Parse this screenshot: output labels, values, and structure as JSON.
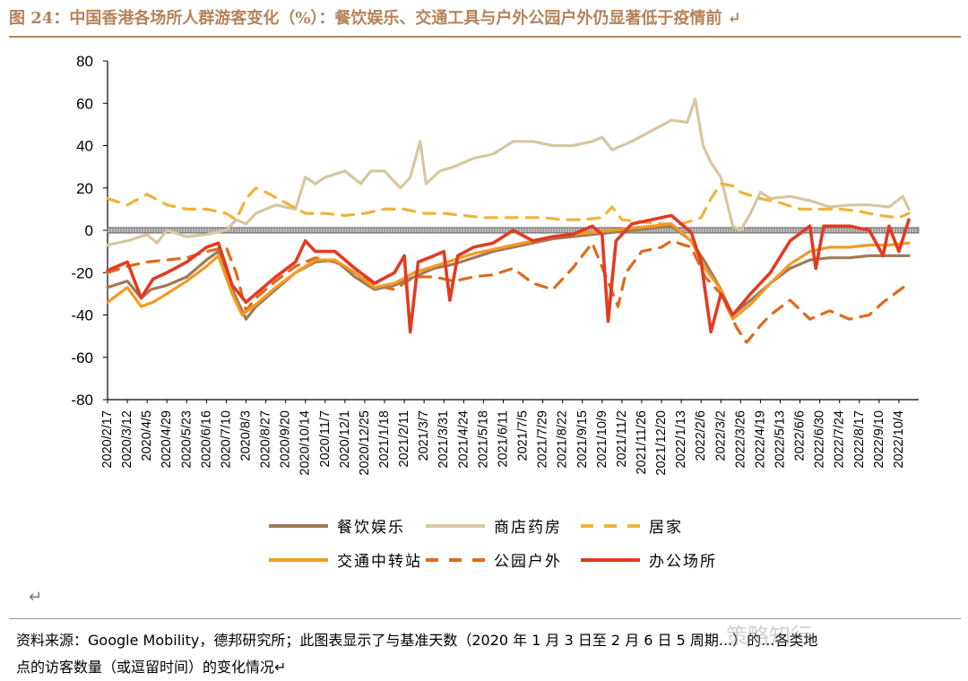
{
  "figure": {
    "title": "图 24：中国香港各场所人群游客变化（%）：餐饮娱乐、交通工具与户外公园户外仍显著低于疫情前 ↵",
    "return_mark": "↵",
    "source_line1": "资料来源：Google Mobility，德邦研究所；此图表显示了与基准天数（2020 年 1 月 3 日至 2 月 6 日 5 周期...）的...各类地",
    "source_line2": "点的访客数量（或逗留时间）的变化情况↵",
    "watermark": "策略知行"
  },
  "chart_data": {
    "type": "line",
    "title": "",
    "xlabel": "",
    "ylabel": "",
    "ylim": [
      -80,
      80
    ],
    "yticks": [
      80,
      60,
      40,
      20,
      0,
      -20,
      -40,
      -60,
      -80
    ],
    "x_tick_labels": [
      "2020/2/17",
      "2020/3/12",
      "2020/4/5",
      "2020/4/29",
      "2020/5/23",
      "2020/6/16",
      "2020/7/10",
      "2020/8/3",
      "2020/8/27",
      "2020/9/20",
      "2020/10/14",
      "2020/11/7",
      "2020/12/1",
      "2020/12/25",
      "2021/1/18",
      "2021/2/11",
      "2021/3/7",
      "2021/3/31",
      "2021/4/24",
      "2021/5/18",
      "2021/6/11",
      "2021/7/5",
      "2021/7/29",
      "2021/8/22",
      "2021/9/15",
      "2021/10/9",
      "2021/11/2",
      "2021/11/26",
      "2021/12/20",
      "2022/1/13",
      "2022/2/6",
      "2022/3/2",
      "2022/3/26",
      "2022/4/19",
      "2022/5/13",
      "2022/6/6",
      "2022/6/30",
      "2022/7/24",
      "2022/8/17",
      "2022/9/10",
      "2022/10/4"
    ],
    "x_index_max": 41,
    "legend_position": "bottom",
    "grid": false,
    "series": [
      {
        "name": "餐饮娱乐",
        "color": "#a07a58",
        "dash": "solid",
        "points": [
          [
            0,
            -27
          ],
          [
            1,
            -24
          ],
          [
            1.7,
            -32
          ],
          [
            2.2,
            -28
          ],
          [
            3,
            -26
          ],
          [
            4,
            -22
          ],
          [
            5,
            -14
          ],
          [
            5.6,
            -10
          ],
          [
            6.3,
            -28
          ],
          [
            7,
            -42
          ],
          [
            7.5,
            -36
          ],
          [
            8.5,
            -28
          ],
          [
            9.5,
            -20
          ],
          [
            10.5,
            -15
          ],
          [
            11.5,
            -14
          ],
          [
            12.5,
            -22
          ],
          [
            13.5,
            -28
          ],
          [
            14.5,
            -26
          ],
          [
            15.5,
            -22
          ],
          [
            16.5,
            -18
          ],
          [
            17.5,
            -16
          ],
          [
            18.5,
            -13
          ],
          [
            19.5,
            -10
          ],
          [
            20.5,
            -8
          ],
          [
            21.5,
            -6
          ],
          [
            22.5,
            -4
          ],
          [
            23.5,
            -3
          ],
          [
            24.5,
            -2
          ],
          [
            25.5,
            -1
          ],
          [
            26.5,
            0
          ],
          [
            27.5,
            1
          ],
          [
            28.5,
            2
          ],
          [
            29.5,
            -5
          ],
          [
            30.2,
            -15
          ],
          [
            31,
            -28
          ],
          [
            31.6,
            -40
          ],
          [
            32.5,
            -33
          ],
          [
            33.5,
            -25
          ],
          [
            34.5,
            -18
          ],
          [
            35.5,
            -14
          ],
          [
            36.5,
            -13
          ],
          [
            37.5,
            -13
          ],
          [
            38.5,
            -12
          ],
          [
            39.5,
            -12
          ],
          [
            40.5,
            -12
          ]
        ]
      },
      {
        "name": "商店药房",
        "color": "#d7c6a0",
        "dash": "solid",
        "points": [
          [
            0,
            -7
          ],
          [
            1,
            -5
          ],
          [
            2,
            -2
          ],
          [
            2.5,
            -6
          ],
          [
            3,
            0
          ],
          [
            4,
            -3
          ],
          [
            5,
            -2
          ],
          [
            6,
            0
          ],
          [
            6.5,
            5
          ],
          [
            7,
            3
          ],
          [
            7.5,
            8
          ],
          [
            8.5,
            12
          ],
          [
            9.5,
            10
          ],
          [
            10,
            25
          ],
          [
            10.5,
            22
          ],
          [
            11,
            25
          ],
          [
            12,
            28
          ],
          [
            12.8,
            22
          ],
          [
            13.3,
            28
          ],
          [
            14,
            28
          ],
          [
            14.8,
            20
          ],
          [
            15.3,
            25
          ],
          [
            15.8,
            42
          ],
          [
            16.1,
            22
          ],
          [
            16.8,
            28
          ],
          [
            17.5,
            30
          ],
          [
            18.5,
            34
          ],
          [
            19.5,
            36
          ],
          [
            20.5,
            42
          ],
          [
            21.5,
            42
          ],
          [
            22.5,
            40
          ],
          [
            23.5,
            40
          ],
          [
            24.5,
            42
          ],
          [
            25,
            44
          ],
          [
            25.5,
            38
          ],
          [
            26.5,
            42
          ],
          [
            27.5,
            47
          ],
          [
            28.5,
            52
          ],
          [
            29.3,
            51
          ],
          [
            29.7,
            62
          ],
          [
            30.1,
            40
          ],
          [
            30.5,
            32
          ],
          [
            31,
            25
          ],
          [
            31.6,
            2
          ],
          [
            32,
            0
          ],
          [
            32.5,
            8
          ],
          [
            33,
            18
          ],
          [
            33.5,
            15
          ],
          [
            34.5,
            16
          ],
          [
            35.5,
            14
          ],
          [
            36.5,
            11
          ],
          [
            37.5,
            12
          ],
          [
            38.5,
            12
          ],
          [
            39.5,
            11
          ],
          [
            40.2,
            16
          ],
          [
            40.5,
            10
          ]
        ]
      },
      {
        "name": "居家",
        "color": "#eeb43a",
        "dash": "dashed",
        "points": [
          [
            0,
            15
          ],
          [
            1,
            12
          ],
          [
            2,
            17
          ],
          [
            3,
            12
          ],
          [
            4,
            10
          ],
          [
            5,
            10
          ],
          [
            6,
            8
          ],
          [
            6.5,
            5
          ],
          [
            7,
            15
          ],
          [
            7.5,
            20
          ],
          [
            8,
            18
          ],
          [
            9,
            13
          ],
          [
            10,
            8
          ],
          [
            11,
            8
          ],
          [
            12,
            7
          ],
          [
            13,
            8
          ],
          [
            14,
            10
          ],
          [
            15,
            10
          ],
          [
            16,
            8
          ],
          [
            17,
            8
          ],
          [
            18,
            7
          ],
          [
            19,
            6
          ],
          [
            20,
            6
          ],
          [
            21,
            6
          ],
          [
            22,
            6
          ],
          [
            23,
            5
          ],
          [
            24,
            5
          ],
          [
            25,
            6
          ],
          [
            25.5,
            11
          ],
          [
            26,
            5
          ],
          [
            27,
            4
          ],
          [
            28,
            3
          ],
          [
            29,
            3
          ],
          [
            30,
            6
          ],
          [
            30.5,
            15
          ],
          [
            31,
            22
          ],
          [
            31.6,
            21
          ],
          [
            32,
            18
          ],
          [
            33,
            15
          ],
          [
            34,
            13
          ],
          [
            35,
            10
          ],
          [
            36,
            10
          ],
          [
            37,
            10
          ],
          [
            38,
            9
          ],
          [
            39,
            7
          ],
          [
            40,
            6
          ],
          [
            40.5,
            8
          ]
        ]
      },
      {
        "name": "交通中转站",
        "color": "#f39a24",
        "dash": "solid",
        "points": [
          [
            0,
            -34
          ],
          [
            1,
            -27
          ],
          [
            1.7,
            -36
          ],
          [
            2.3,
            -34
          ],
          [
            3,
            -30
          ],
          [
            4,
            -24
          ],
          [
            5,
            -17
          ],
          [
            5.6,
            -12
          ],
          [
            6.3,
            -30
          ],
          [
            6.8,
            -40
          ],
          [
            7.5,
            -35
          ],
          [
            8.5,
            -27
          ],
          [
            9.5,
            -20
          ],
          [
            10.5,
            -14
          ],
          [
            11.5,
            -14
          ],
          [
            12.5,
            -20
          ],
          [
            13.5,
            -27
          ],
          [
            14.5,
            -25
          ],
          [
            15.5,
            -20
          ],
          [
            16.5,
            -17
          ],
          [
            17.5,
            -14
          ],
          [
            18.5,
            -11
          ],
          [
            19.5,
            -9
          ],
          [
            20.5,
            -7
          ],
          [
            21.5,
            -5
          ],
          [
            22.5,
            -3
          ],
          [
            23.5,
            -2
          ],
          [
            24.5,
            -1
          ],
          [
            25.5,
            0
          ],
          [
            26.5,
            1
          ],
          [
            27.5,
            2
          ],
          [
            28.5,
            3
          ],
          [
            29.5,
            -5
          ],
          [
            30.2,
            -18
          ],
          [
            31,
            -28
          ],
          [
            31.6,
            -42
          ],
          [
            32.5,
            -35
          ],
          [
            33.5,
            -25
          ],
          [
            34.5,
            -16
          ],
          [
            35.5,
            -10
          ],
          [
            36.5,
            -8
          ],
          [
            37.5,
            -8
          ],
          [
            38.5,
            -7
          ],
          [
            39.5,
            -7
          ],
          [
            40.5,
            -6
          ]
        ]
      },
      {
        "name": "公园户外",
        "color": "#e06a1a",
        "dash": "dashed",
        "points": [
          [
            0,
            -20
          ],
          [
            1,
            -17
          ],
          [
            2,
            -15
          ],
          [
            3,
            -14
          ],
          [
            4,
            -13
          ],
          [
            5,
            -10
          ],
          [
            6,
            -8
          ],
          [
            6.5,
            -20
          ],
          [
            7,
            -38
          ],
          [
            7.5,
            -32
          ],
          [
            8.5,
            -24
          ],
          [
            9.5,
            -17
          ],
          [
            10.5,
            -13
          ],
          [
            11.5,
            -15
          ],
          [
            12.5,
            -20
          ],
          [
            13.5,
            -26
          ],
          [
            14.5,
            -28
          ],
          [
            15.5,
            -22
          ],
          [
            16.5,
            -22
          ],
          [
            17.5,
            -24
          ],
          [
            18.5,
            -22
          ],
          [
            19.5,
            -21
          ],
          [
            20.5,
            -18
          ],
          [
            21.5,
            -25
          ],
          [
            22.5,
            -28
          ],
          [
            23.5,
            -18
          ],
          [
            24.5,
            -6
          ],
          [
            25.2,
            -22
          ],
          [
            25.8,
            -36
          ],
          [
            26.2,
            -20
          ],
          [
            27,
            -10
          ],
          [
            28,
            -8
          ],
          [
            28.5,
            -5
          ],
          [
            29.5,
            -8
          ],
          [
            30.2,
            -22
          ],
          [
            31,
            -30
          ],
          [
            31.8,
            -46
          ],
          [
            32.3,
            -53
          ],
          [
            33,
            -45
          ],
          [
            33.5,
            -40
          ],
          [
            34.5,
            -33
          ],
          [
            35.5,
            -42
          ],
          [
            36.5,
            -38
          ],
          [
            37.5,
            -42
          ],
          [
            38.5,
            -40
          ],
          [
            39.2,
            -34
          ],
          [
            40.5,
            -25
          ]
        ]
      },
      {
        "name": "办公场所",
        "color": "#e23b22",
        "dash": "solid",
        "points": [
          [
            0,
            -19
          ],
          [
            1,
            -15
          ],
          [
            1.7,
            -32
          ],
          [
            2.3,
            -23
          ],
          [
            3,
            -20
          ],
          [
            4,
            -15
          ],
          [
            5,
            -8
          ],
          [
            5.6,
            -6
          ],
          [
            6.3,
            -26
          ],
          [
            7,
            -34
          ],
          [
            7.5,
            -30
          ],
          [
            8.5,
            -22
          ],
          [
            9.5,
            -15
          ],
          [
            10,
            -5
          ],
          [
            10.5,
            -10
          ],
          [
            11.5,
            -10
          ],
          [
            12.5,
            -18
          ],
          [
            13.5,
            -25
          ],
          [
            14.5,
            -20
          ],
          [
            15,
            -12
          ],
          [
            15.3,
            -48
          ],
          [
            15.7,
            -15
          ],
          [
            16.5,
            -12
          ],
          [
            17,
            -10
          ],
          [
            17.3,
            -33
          ],
          [
            17.7,
            -12
          ],
          [
            18.5,
            -8
          ],
          [
            19.5,
            -6
          ],
          [
            20.5,
            0
          ],
          [
            21.5,
            -5
          ],
          [
            22.5,
            -3
          ],
          [
            23.5,
            -2
          ],
          [
            24.5,
            2
          ],
          [
            25,
            -2
          ],
          [
            25.3,
            -43
          ],
          [
            25.7,
            -5
          ],
          [
            26.5,
            3
          ],
          [
            27.5,
            5
          ],
          [
            28.5,
            7
          ],
          [
            29.5,
            -1
          ],
          [
            30,
            -15
          ],
          [
            30.5,
            -48
          ],
          [
            31,
            -30
          ],
          [
            31.6,
            -40
          ],
          [
            32.5,
            -30
          ],
          [
            33.5,
            -20
          ],
          [
            34.5,
            -5
          ],
          [
            35.5,
            2
          ],
          [
            35.8,
            -18
          ],
          [
            36.2,
            2
          ],
          [
            37.5,
            2
          ],
          [
            38.5,
            0
          ],
          [
            39.2,
            -12
          ],
          [
            39.5,
            2
          ],
          [
            40,
            -10
          ],
          [
            40.5,
            5
          ]
        ]
      }
    ]
  }
}
